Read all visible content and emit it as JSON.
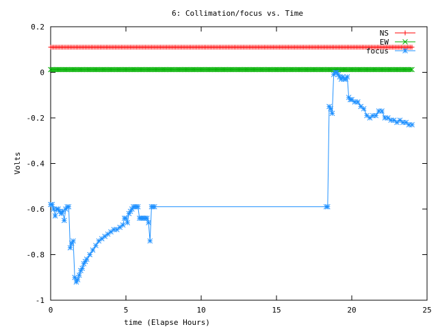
{
  "chart_data": {
    "type": "line",
    "title": "6: Collimation/focus vs. Time",
    "xlabel": "time (Elapse Hours)",
    "ylabel": "Volts",
    "xlim": [
      0,
      25
    ],
    "ylim": [
      -1,
      0.2
    ],
    "xticks": [
      0,
      5,
      10,
      15,
      20,
      25
    ],
    "yticks": [
      -1,
      -0.8,
      -0.6,
      -0.4,
      -0.2,
      0,
      0.2
    ],
    "xtick_labels": [
      "0",
      "5",
      "10",
      "15",
      "20",
      "25"
    ],
    "ytick_labels": [
      "-1",
      "-0.8",
      "-0.6",
      "-0.4",
      "-0.2",
      "0",
      "0.2"
    ],
    "grid": false,
    "legend_position": "top-right",
    "series": [
      {
        "name": "NS",
        "color": "#ff0000",
        "marker": "plus",
        "x": [
          0,
          24
        ],
        "y": [
          0.11,
          0.11
        ],
        "constant": true
      },
      {
        "name": "EW",
        "color": "#00b000",
        "marker": "cross",
        "x": [
          0,
          24
        ],
        "y": [
          0.012,
          0.012
        ],
        "constant": true
      },
      {
        "name": "focus",
        "color": "#1e90ff",
        "marker": "star",
        "x": [
          0.0,
          0.1,
          0.2,
          0.3,
          0.4,
          0.5,
          0.6,
          0.7,
          0.8,
          0.9,
          1.0,
          1.1,
          1.2,
          1.3,
          1.4,
          1.5,
          1.6,
          1.7,
          1.8,
          1.9,
          2.0,
          2.1,
          2.2,
          2.3,
          2.4,
          2.6,
          2.8,
          3.0,
          3.2,
          3.4,
          3.6,
          3.8,
          4.0,
          4.2,
          4.4,
          4.6,
          4.8,
          4.9,
          5.0,
          5.1,
          5.2,
          5.3,
          5.4,
          5.5,
          5.6,
          5.7,
          5.8,
          5.9,
          6.0,
          6.1,
          6.2,
          6.3,
          6.4,
          6.5,
          6.6,
          6.7,
          6.8,
          6.9,
          18.3,
          18.4,
          18.5,
          18.6,
          18.7,
          18.8,
          18.9,
          19.0,
          19.1,
          19.2,
          19.3,
          19.4,
          19.5,
          19.6,
          19.7,
          19.8,
          19.9,
          20.0,
          20.2,
          20.4,
          20.6,
          20.8,
          21.0,
          21.2,
          21.4,
          21.6,
          21.8,
          22.0,
          22.2,
          22.4,
          22.6,
          22.8,
          23.0,
          23.2,
          23.4,
          23.6,
          23.8,
          24.0
        ],
        "y": [
          -0.58,
          -0.58,
          -0.6,
          -0.63,
          -0.6,
          -0.6,
          -0.61,
          -0.62,
          -0.61,
          -0.65,
          -0.6,
          -0.59,
          -0.59,
          -0.77,
          -0.75,
          -0.74,
          -0.9,
          -0.92,
          -0.91,
          -0.89,
          -0.87,
          -0.86,
          -0.84,
          -0.83,
          -0.82,
          -0.8,
          -0.78,
          -0.76,
          -0.74,
          -0.73,
          -0.72,
          -0.71,
          -0.7,
          -0.69,
          -0.69,
          -0.68,
          -0.67,
          -0.64,
          -0.64,
          -0.66,
          -0.62,
          -0.61,
          -0.6,
          -0.59,
          -0.59,
          -0.59,
          -0.59,
          -0.64,
          -0.64,
          -0.64,
          -0.64,
          -0.64,
          -0.64,
          -0.66,
          -0.74,
          -0.59,
          -0.59,
          -0.59,
          -0.59,
          -0.59,
          -0.15,
          -0.16,
          -0.18,
          -0.01,
          0.0,
          0.0,
          -0.01,
          -0.02,
          -0.03,
          -0.02,
          -0.03,
          -0.03,
          -0.02,
          -0.11,
          -0.12,
          -0.12,
          -0.13,
          -0.13,
          -0.15,
          -0.16,
          -0.19,
          -0.2,
          -0.19,
          -0.19,
          -0.17,
          -0.17,
          -0.2,
          -0.2,
          -0.21,
          -0.21,
          -0.22,
          -0.21,
          -0.22,
          -0.22,
          -0.23,
          -0.23
        ]
      }
    ]
  }
}
